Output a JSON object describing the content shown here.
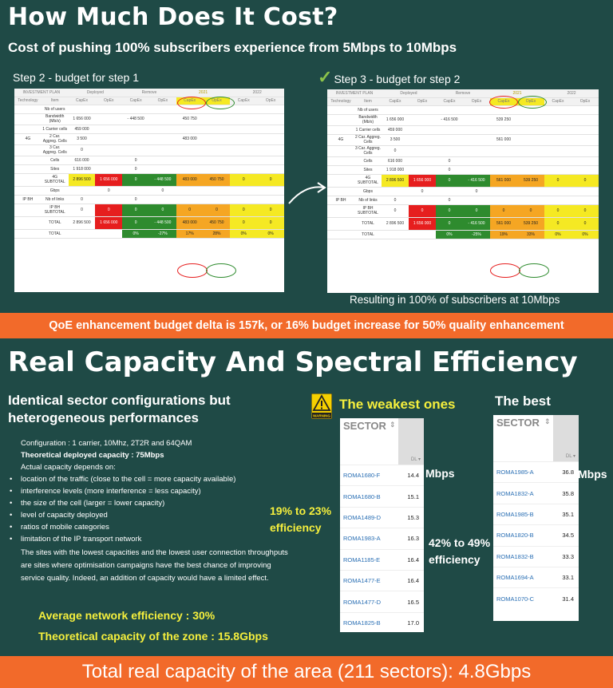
{
  "header": {
    "title": "How Much Does It Cost?",
    "subtitle": "Cost of pushing 100% subscribers experience from 5Mbps to 10Mbps"
  },
  "step2": {
    "label": "Step 2 - budget for step 1",
    "top_groups": [
      "INVESTMENT PLAN",
      "Deployed",
      "Remove",
      "2021",
      "2022"
    ],
    "columns": [
      "Technology",
      "Item",
      "CapEx",
      "OpEx",
      "CapEx",
      "OpEx",
      "CapEx",
      "OpEx",
      "CapEx",
      "OpEx"
    ],
    "rows": [
      {
        "tech": "",
        "item": "Nb of users",
        "v": [
          "",
          "",
          "",
          "",
          "",
          "",
          "",
          ""
        ]
      },
      {
        "tech": "",
        "item": "Bandwidth (Mb/s)",
        "v": [
          "1 656 000",
          "",
          "- 448 500",
          "",
          "450 750",
          "",
          "",
          ""
        ]
      },
      {
        "tech": "",
        "item": "1 Carrier cells",
        "v": [
          "459 000",
          "",
          "",
          "",
          "",
          "",
          "",
          ""
        ]
      },
      {
        "tech": "4G",
        "item": "2 Car. Aggreg. Cells",
        "v": [
          "3 500",
          "",
          "",
          "",
          "483 000",
          "",
          "",
          ""
        ]
      },
      {
        "tech": "",
        "item": "3 Car. Aggreg. Cells",
        "v": [
          "0",
          "",
          "",
          "",
          "",
          "",
          "",
          ""
        ]
      },
      {
        "tech": "",
        "item": "Cells",
        "v": [
          "616 000",
          "",
          "0",
          "",
          "",
          "",
          "",
          ""
        ]
      },
      {
        "tech": "",
        "item": "Sites",
        "v": [
          "1 918 000",
          "",
          "0",
          "",
          "",
          "",
          "",
          ""
        ]
      },
      {
        "tech": "",
        "item": "4G SUBTOTAL",
        "v": [
          "2 896 500",
          "1 656 000",
          "0",
          "- 448 500",
          "483 000",
          "450 750",
          "0",
          "0"
        ]
      },
      {
        "tech": "",
        "item": "Gbps",
        "v": [
          "",
          "0",
          "",
          "0",
          "",
          "",
          "",
          ""
        ]
      },
      {
        "tech": "IP BH",
        "item": "Nb of links",
        "v": [
          "0",
          "",
          "0",
          "",
          "",
          "",
          "",
          ""
        ]
      },
      {
        "tech": "",
        "item": "IP BH SUBTOTAL",
        "v": [
          "0",
          "0",
          "0",
          "0",
          "0",
          "0",
          "0",
          "0"
        ]
      },
      {
        "tech": "",
        "item": "TOTAL",
        "v": [
          "2 896 500",
          "1 656 000",
          "0",
          "- 448 500",
          "483 000",
          "450 750",
          "0",
          "0"
        ]
      },
      {
        "tech": "",
        "item": "TOTAL",
        "v": [
          "",
          "",
          "0%",
          "-27%",
          "17%",
          "28%",
          "0%",
          "0%"
        ]
      }
    ]
  },
  "step3": {
    "label": "Step 3 - budget for step 2",
    "top_groups": [
      "INVESTMENT PLAN",
      "Deployed",
      "Remove",
      "2021",
      "2022"
    ],
    "columns": [
      "Technology",
      "Item",
      "CapEx",
      "OpEx",
      "CapEx",
      "OpEx",
      "CapEx",
      "OpEx",
      "CapEx",
      "OpEx"
    ],
    "rows": [
      {
        "tech": "",
        "item": "Nb of users",
        "v": [
          "",
          "",
          "",
          "",
          "",
          "",
          "",
          ""
        ]
      },
      {
        "tech": "",
        "item": "Bandwidth (Mb/s)",
        "v": [
          "1 656 000",
          "",
          "- 416 500",
          "",
          "539 250",
          "",
          "",
          ""
        ]
      },
      {
        "tech": "",
        "item": "1 Carrier cells",
        "v": [
          "459 000",
          "",
          "",
          "",
          "",
          "",
          "",
          ""
        ]
      },
      {
        "tech": "4G",
        "item": "2 Car. Aggreg. Cells",
        "v": [
          "3 500",
          "",
          "",
          "",
          "561 000",
          "",
          "",
          ""
        ]
      },
      {
        "tech": "",
        "item": "3 Car. Aggreg. Cells",
        "v": [
          "0",
          "",
          "",
          "",
          "",
          "",
          "",
          ""
        ]
      },
      {
        "tech": "",
        "item": "Cells",
        "v": [
          "616 000",
          "",
          "0",
          "",
          "",
          "",
          "",
          ""
        ]
      },
      {
        "tech": "",
        "item": "Sites",
        "v": [
          "1 918 000",
          "",
          "0",
          "",
          "",
          "",
          "",
          ""
        ]
      },
      {
        "tech": "",
        "item": "4G SUBTOTAL",
        "v": [
          "2 896 500",
          "1 656 000",
          "0",
          "- 416 500",
          "561 000",
          "539 250",
          "0",
          "0"
        ]
      },
      {
        "tech": "",
        "item": "Gbps",
        "v": [
          "",
          "0",
          "",
          "0",
          "",
          "",
          "",
          ""
        ]
      },
      {
        "tech": "IP BH",
        "item": "Nb of links",
        "v": [
          "0",
          "",
          "0",
          "",
          "",
          "",
          "",
          ""
        ]
      },
      {
        "tech": "",
        "item": "IP BH SUBTOTAL",
        "v": [
          "0",
          "0",
          "0",
          "0",
          "0",
          "0",
          "0",
          "0"
        ]
      },
      {
        "tech": "",
        "item": "TOTAL",
        "v": [
          "2 896 500",
          "1 656 000",
          "0",
          "- 416 500",
          "561 000",
          "539 250",
          "0",
          "0"
        ]
      },
      {
        "tech": "",
        "item": "TOTAL",
        "v": [
          "",
          "",
          "0%",
          "-25%",
          "19%",
          "33%",
          "0%",
          "0%"
        ]
      }
    ]
  },
  "result_text": "Resulting in 100% of subscribers at 10Mbps",
  "qoe_banner": "QoE enhancement budget delta is 157k, or 16% budget increase for 50% quality enhancement",
  "section2": {
    "title": "Real Capacity And Spectral Efficiency",
    "lead": "Identical sector configurations but heterogeneous performances",
    "config_line": "Configuration : 1 carrier, 10Mhz, 2T2R and 64QAM",
    "theoretical_line": "Theoretical deployed capacity : 75Mbps",
    "actual_line": "Actual capacity depends on:",
    "bullets": [
      "location of the traffic (close to the cell = more capacity available)",
      "interference levels (more interference = less capacity)",
      "the size of the cell (larger = lower capacity)",
      "level of capacity deployed",
      "ratios of mobile categories",
      "limitation of the IP transport network"
    ],
    "paragraph": "The sites with the lowest capacities and the lowest user connection throughputs are sites where optimisation campaigns have the best chance of improving service quality. Indeed, an addition of capacity would have a limited effect.",
    "avg_eff": "Average network efficiency : 30%",
    "theo_cap": "Theoretical capacity of the zone : 15.8Gbps"
  },
  "weakest": {
    "label": "The weakest ones",
    "warning_text": "WARNING",
    "header": "SECTOR",
    "rows": [
      {
        "name": "ROMA1680-F",
        "value": "14.4"
      },
      {
        "name": "ROMA1680-B",
        "value": "15.1"
      },
      {
        "name": "ROMA1489-D",
        "value": "15.3"
      },
      {
        "name": "ROMA1983-A",
        "value": "16.3"
      },
      {
        "name": "ROMA1185-E",
        "value": "16.4"
      },
      {
        "name": "ROMA1477-E",
        "value": "16.4"
      },
      {
        "name": "ROMA1477-D",
        "value": "16.5"
      },
      {
        "name": "ROMA1825-B",
        "value": "17.0"
      }
    ],
    "unit": "Mbps",
    "efficiency_line1": "19% to 23%",
    "efficiency_line2": "efficiency"
  },
  "best": {
    "label": "The best",
    "header": "SECTOR",
    "rows": [
      {
        "name": "ROMA1985-A",
        "value": "36.8"
      },
      {
        "name": "ROMA1832-A",
        "value": "35.8"
      },
      {
        "name": "ROMA1985-B",
        "value": "35.1"
      },
      {
        "name": "ROMA1820-B",
        "value": "34.5"
      },
      {
        "name": "ROMA1832-B",
        "value": "33.3"
      },
      {
        "name": "ROMA1694-A",
        "value": "33.1"
      },
      {
        "name": "ROMA1070-C",
        "value": "31.4"
      }
    ],
    "unit": "Mbps",
    "efficiency_line1": "42% to 49%",
    "efficiency_line2": "efficiency"
  },
  "total_banner": "Total real capacity of the area (211 sectors): 4.8Gbps",
  "colors": {
    "background": "#1f4a46",
    "accent_orange": "#f26a2a",
    "highlight_yellow": "#f5ef3d",
    "cell_red": "#e61e1e",
    "cell_green": "#2e8b2e",
    "cell_orange": "#f5a623",
    "cell_yellow": "#f5e923"
  }
}
